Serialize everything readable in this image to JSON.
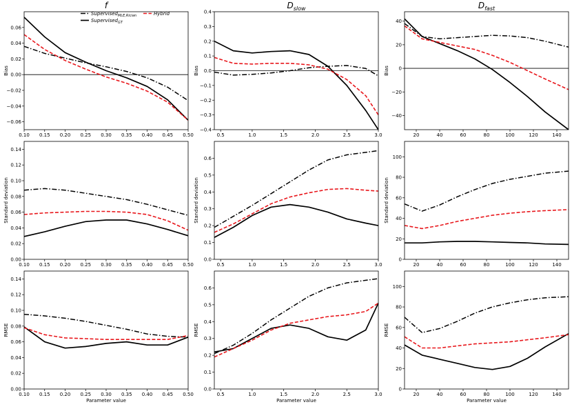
{
  "columns": [
    {
      "title": "f",
      "sub": "",
      "xlim": [
        0.1,
        0.5
      ],
      "xticks": [
        0.1,
        0.15,
        0.2,
        0.25,
        0.3,
        0.35,
        0.4,
        0.45,
        0.5
      ],
      "xtick_labels": [
        "0.10",
        "0.15",
        "0.20",
        "0.25",
        "0.30",
        "0.35",
        "0.40",
        "0.45",
        "0.50"
      ]
    },
    {
      "title": "D",
      "sub": "slow",
      "xlim": [
        0.4,
        3.0
      ],
      "xticks": [
        0.5,
        1.0,
        1.5,
        2.0,
        2.5,
        3.0
      ],
      "xtick_labels": [
        "0.5",
        "1.0",
        "1.5",
        "2.0",
        "2.5",
        "3.0"
      ]
    },
    {
      "title": "D",
      "sub": "fast",
      "xlim": [
        10,
        150
      ],
      "xticks": [
        20,
        40,
        60,
        80,
        100,
        120,
        140
      ],
      "xtick_labels": [
        "20",
        "40",
        "60",
        "80",
        "100",
        "120",
        "140"
      ]
    }
  ],
  "legend": [
    {
      "name": "Supervised",
      "sub": "MLE,Rician",
      "style": "dashdot",
      "color": "#000000"
    },
    {
      "name": "Supervised",
      "sub": "GT",
      "style": "solid",
      "color": "#000000"
    },
    {
      "name": "Hybrid",
      "sub": "",
      "style": "dashed",
      "color": "#e8161b"
    }
  ],
  "xlabel_common": "Parameter value",
  "chart_data": [
    {
      "type": "line",
      "row": 0,
      "col": 0,
      "ylabel": "Bias",
      "ylim": [
        -0.07,
        0.08
      ],
      "yticks": [
        -0.06,
        -0.04,
        -0.02,
        0.0,
        0.02,
        0.04,
        0.06
      ],
      "ytick_labels": [
        "−0.06",
        "−0.04",
        "−0.02",
        "0.00",
        "0.02",
        "0.04",
        "0.06"
      ],
      "zero_line": true,
      "x": [
        0.1,
        0.15,
        0.2,
        0.25,
        0.3,
        0.35,
        0.4,
        0.45,
        0.5
      ],
      "series": [
        {
          "name": "Supervised MLE,Rician",
          "values": [
            0.036,
            0.027,
            0.021,
            0.015,
            0.01,
            0.004,
            -0.004,
            -0.016,
            -0.033
          ]
        },
        {
          "name": "Supervised GT",
          "values": [
            0.073,
            0.048,
            0.028,
            0.016,
            0.005,
            -0.004,
            -0.015,
            -0.032,
            -0.058
          ]
        },
        {
          "name": "Hybrid",
          "values": [
            0.051,
            0.032,
            0.018,
            0.007,
            -0.003,
            -0.011,
            -0.021,
            -0.035,
            -0.058
          ]
        }
      ]
    },
    {
      "type": "line",
      "row": 0,
      "col": 1,
      "ylabel": "Bias",
      "ylim": [
        -0.4,
        0.4
      ],
      "yticks": [
        -0.4,
        -0.3,
        -0.2,
        -0.1,
        0.0,
        0.1,
        0.2,
        0.3,
        0.4
      ],
      "ytick_labels": [
        "−0.4",
        "−0.3",
        "−0.2",
        "−0.1",
        "0.0",
        "0.1",
        "0.2",
        "0.3",
        "0.4"
      ],
      "zero_line": true,
      "x": [
        0.4,
        0.7,
        1.0,
        1.3,
        1.6,
        1.9,
        2.2,
        2.5,
        2.8,
        3.0
      ],
      "series": [
        {
          "name": "Supervised MLE,Rician",
          "values": [
            -0.01,
            -0.03,
            -0.025,
            -0.015,
            0.0,
            0.02,
            0.03,
            0.035,
            0.015,
            -0.035
          ]
        },
        {
          "name": "Supervised GT",
          "values": [
            0.2,
            0.135,
            0.12,
            0.13,
            0.135,
            0.11,
            0.03,
            -0.1,
            -0.27,
            -0.4
          ]
        },
        {
          "name": "Hybrid",
          "values": [
            0.09,
            0.05,
            0.045,
            0.05,
            0.05,
            0.04,
            0.01,
            -0.06,
            -0.17,
            -0.3
          ]
        }
      ]
    },
    {
      "type": "line",
      "row": 0,
      "col": 2,
      "ylabel": "Bias",
      "ylim": [
        -52,
        48
      ],
      "yticks": [
        -40,
        -20,
        0,
        20,
        40
      ],
      "ytick_labels": [
        "−40",
        "−20",
        "0",
        "20",
        "40"
      ],
      "zero_line": true,
      "x": [
        10,
        25,
        40,
        55,
        70,
        85,
        100,
        115,
        130,
        150
      ],
      "series": [
        {
          "name": "Supervised MLE,Rician",
          "values": [
            38,
            27,
            25,
            26,
            27,
            28,
            27.5,
            26,
            23,
            18
          ]
        },
        {
          "name": "Supervised GT",
          "values": [
            42,
            27,
            21,
            15,
            8,
            -1,
            -12,
            -24,
            -37,
            -52
          ]
        },
        {
          "name": "Hybrid",
          "values": [
            36,
            25,
            22,
            19,
            16,
            11,
            5,
            -2,
            -9,
            -18
          ]
        }
      ]
    },
    {
      "type": "line",
      "row": 1,
      "col": 0,
      "ylabel": "Standard deviation",
      "ylim": [
        0,
        0.15
      ],
      "yticks": [
        0,
        0.02,
        0.04,
        0.06,
        0.08,
        0.1,
        0.12,
        0.14
      ],
      "ytick_labels": [
        "0.00",
        "0.02",
        "0.04",
        "0.06",
        "0.08",
        "0.10",
        "0.12",
        "0.14"
      ],
      "zero_line": false,
      "x": [
        0.1,
        0.15,
        0.2,
        0.25,
        0.3,
        0.35,
        0.4,
        0.45,
        0.5
      ],
      "series": [
        {
          "name": "Supervised MLE,Rician",
          "values": [
            0.088,
            0.09,
            0.088,
            0.084,
            0.08,
            0.076,
            0.07,
            0.063,
            0.056
          ]
        },
        {
          "name": "Supervised GT",
          "values": [
            0.029,
            0.035,
            0.042,
            0.048,
            0.05,
            0.05,
            0.045,
            0.038,
            0.03
          ]
        },
        {
          "name": "Hybrid",
          "values": [
            0.057,
            0.059,
            0.06,
            0.061,
            0.061,
            0.06,
            0.057,
            0.049,
            0.037
          ]
        }
      ]
    },
    {
      "type": "line",
      "row": 1,
      "col": 1,
      "ylabel": "Standard deviation",
      "ylim": [
        0,
        0.7
      ],
      "yticks": [
        0,
        0.1,
        0.2,
        0.3,
        0.4,
        0.5,
        0.6
      ],
      "ytick_labels": [
        "0.0",
        "0.1",
        "0.2",
        "0.3",
        "0.4",
        "0.5",
        "0.6"
      ],
      "zero_line": false,
      "x": [
        0.4,
        0.7,
        1.0,
        1.3,
        1.6,
        1.9,
        2.2,
        2.5,
        2.8,
        3.0
      ],
      "series": [
        {
          "name": "Supervised MLE,Rician",
          "values": [
            0.19,
            0.255,
            0.32,
            0.39,
            0.46,
            0.53,
            0.59,
            0.62,
            0.635,
            0.645
          ]
        },
        {
          "name": "Supervised GT",
          "values": [
            0.13,
            0.19,
            0.26,
            0.31,
            0.325,
            0.31,
            0.28,
            0.24,
            0.215,
            0.2
          ]
        },
        {
          "name": "Hybrid",
          "values": [
            0.16,
            0.21,
            0.27,
            0.33,
            0.37,
            0.395,
            0.415,
            0.42,
            0.41,
            0.405
          ]
        }
      ]
    },
    {
      "type": "line",
      "row": 1,
      "col": 2,
      "ylabel": "Standard deviation",
      "ylim": [
        0,
        115
      ],
      "yticks": [
        0,
        20,
        40,
        60,
        80,
        100
      ],
      "ytick_labels": [
        "0",
        "20",
        "40",
        "60",
        "80",
        "100"
      ],
      "zero_line": false,
      "x": [
        10,
        25,
        40,
        55,
        70,
        85,
        100,
        115,
        130,
        150
      ],
      "series": [
        {
          "name": "Supervised MLE,Rician",
          "values": [
            54,
            47,
            53,
            61,
            68,
            74,
            78,
            81,
            84,
            86
          ]
        },
        {
          "name": "Supervised GT",
          "values": [
            16,
            16,
            17,
            17.5,
            17.5,
            17,
            16.5,
            16,
            15,
            14.5
          ]
        },
        {
          "name": "Hybrid",
          "values": [
            33,
            30,
            33,
            37,
            40,
            43,
            45,
            46.5,
            47.5,
            48.5
          ]
        }
      ]
    },
    {
      "type": "line",
      "row": 2,
      "col": 0,
      "ylabel": "RMSE",
      "ylim": [
        0,
        0.15
      ],
      "yticks": [
        0,
        0.02,
        0.04,
        0.06,
        0.08,
        0.1,
        0.12,
        0.14
      ],
      "ytick_labels": [
        "0.00",
        "0.02",
        "0.04",
        "0.06",
        "0.08",
        "0.10",
        "0.12",
        "0.14"
      ],
      "zero_line": false,
      "x": [
        0.1,
        0.15,
        0.2,
        0.25,
        0.3,
        0.35,
        0.4,
        0.45,
        0.5
      ],
      "series": [
        {
          "name": "Supervised MLE,Rician",
          "values": [
            0.095,
            0.093,
            0.09,
            0.086,
            0.081,
            0.076,
            0.07,
            0.067,
            0.066
          ]
        },
        {
          "name": "Supervised GT",
          "values": [
            0.079,
            0.06,
            0.052,
            0.054,
            0.058,
            0.06,
            0.056,
            0.056,
            0.066
          ]
        },
        {
          "name": "Hybrid",
          "values": [
            0.078,
            0.069,
            0.065,
            0.064,
            0.063,
            0.063,
            0.063,
            0.063,
            0.068
          ]
        }
      ]
    },
    {
      "type": "line",
      "row": 2,
      "col": 1,
      "ylabel": "RMSE",
      "ylim": [
        0,
        0.7
      ],
      "yticks": [
        0,
        0.1,
        0.2,
        0.3,
        0.4,
        0.5,
        0.6
      ],
      "ytick_labels": [
        "0.0",
        "0.1",
        "0.2",
        "0.3",
        "0.4",
        "0.5",
        "0.6"
      ],
      "zero_line": false,
      "x": [
        0.4,
        0.7,
        1.0,
        1.3,
        1.6,
        1.9,
        2.2,
        2.5,
        2.8,
        3.0
      ],
      "series": [
        {
          "name": "Supervised MLE,Rician",
          "values": [
            0.21,
            0.26,
            0.33,
            0.41,
            0.48,
            0.55,
            0.6,
            0.63,
            0.645,
            0.655
          ]
        },
        {
          "name": "Supervised GT",
          "values": [
            0.22,
            0.24,
            0.3,
            0.36,
            0.38,
            0.36,
            0.31,
            0.29,
            0.35,
            0.51
          ]
        },
        {
          "name": "Hybrid",
          "values": [
            0.19,
            0.24,
            0.29,
            0.35,
            0.39,
            0.41,
            0.43,
            0.44,
            0.46,
            0.51
          ]
        }
      ]
    },
    {
      "type": "line",
      "row": 2,
      "col": 2,
      "ylabel": "RMSE",
      "ylim": [
        0,
        115
      ],
      "yticks": [
        0,
        20,
        40,
        60,
        80,
        100
      ],
      "ytick_labels": [
        "0",
        "20",
        "40",
        "60",
        "80",
        "100"
      ],
      "zero_line": false,
      "x": [
        10,
        25,
        40,
        55,
        70,
        85,
        100,
        115,
        130,
        150
      ],
      "series": [
        {
          "name": "Supervised MLE,Rician",
          "values": [
            70,
            55,
            59,
            66,
            74,
            80,
            84,
            87,
            89,
            90
          ]
        },
        {
          "name": "Supervised GT",
          "values": [
            43,
            33,
            29,
            25,
            21,
            19,
            22,
            30,
            41,
            54
          ]
        },
        {
          "name": "Hybrid",
          "values": [
            51,
            40,
            40,
            42,
            44,
            45,
            46,
            48,
            50,
            53
          ]
        }
      ]
    }
  ]
}
